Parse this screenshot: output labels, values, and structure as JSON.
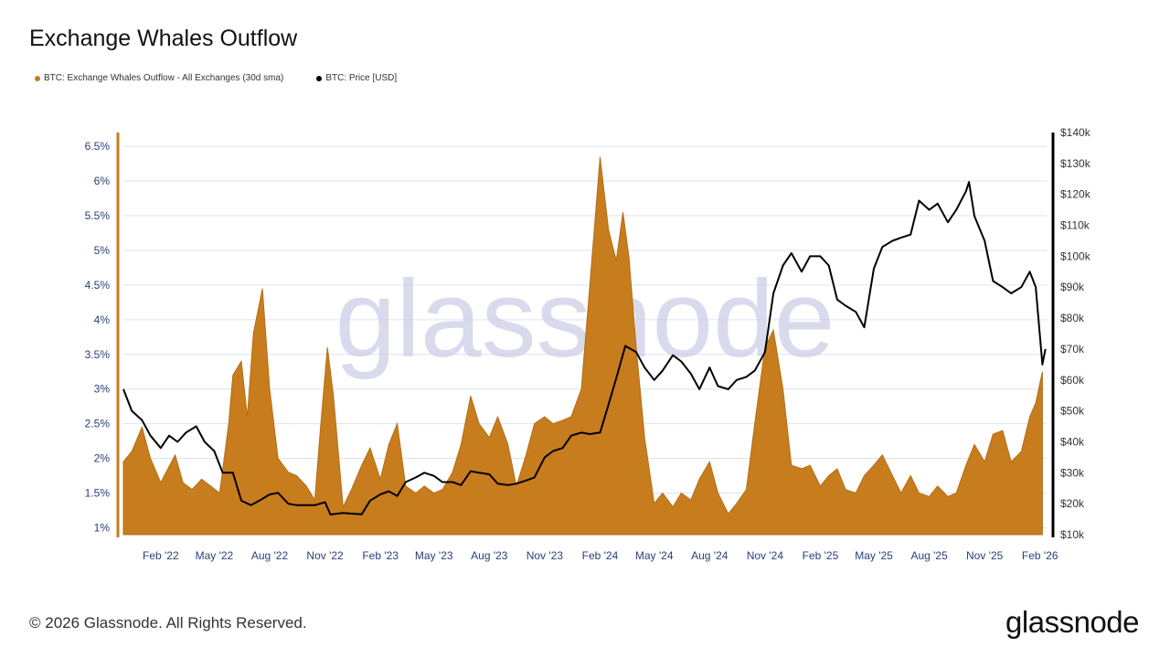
{
  "title": "Exchange Whales Outflow",
  "legend": {
    "series1": "BTC: Exchange Whales Outflow - All Exchanges (30d sma)",
    "series2": "BTC: Price [USD]"
  },
  "footer": {
    "copyright": "© 2026 Glassnode. All Rights Reserved.",
    "logo": "glassnode"
  },
  "watermark": "glassnode",
  "colors": {
    "outflow": "#c77c1e",
    "price": "#000000",
    "grid": "#dde3f0",
    "left_axis_text": "#2a3f7a",
    "right_axis_text": "#333333",
    "watermark": "#c9cde6"
  },
  "chart_data": {
    "type": "area",
    "x_ticks": [
      "Feb '22",
      "May '22",
      "Aug '22",
      "Nov '22",
      "Feb '23",
      "May '23",
      "Aug '23",
      "Nov '23",
      "Feb '24",
      "May '24",
      "Aug '24",
      "Nov '24",
      "Feb '25",
      "May '25",
      "Aug '25",
      "Nov '25",
      "Feb '26"
    ],
    "left_axis": {
      "label": "",
      "ylim": [
        0.9,
        6.7
      ],
      "ticks": [
        "1%",
        "1.5%",
        "2%",
        "2.5%",
        "3%",
        "3.5%",
        "4%",
        "4.5%",
        "5%",
        "5.5%",
        "6%",
        "6.5%"
      ],
      "tick_values": [
        1,
        1.5,
        2,
        2.5,
        3,
        3.5,
        4,
        4.5,
        5,
        5.5,
        6,
        6.5
      ]
    },
    "right_axis": {
      "label": "",
      "ylim": [
        10000,
        140000
      ],
      "ticks": [
        "$10k",
        "$20k",
        "$30k",
        "$40k",
        "$50k",
        "$60k",
        "$70k",
        "$80k",
        "$90k",
        "$100k",
        "$110k",
        "$120k",
        "$130k",
        "$140k"
      ],
      "tick_values": [
        10000,
        20000,
        30000,
        40000,
        50000,
        60000,
        70000,
        80000,
        90000,
        100000,
        110000,
        120000,
        130000,
        140000
      ]
    },
    "grid": true,
    "legend_position": "top-left",
    "series": [
      {
        "name": "BTC: Exchange Whales Outflow - All Exchanges (30d sma)",
        "type": "area",
        "axis": "left",
        "x": [
          "2021-12-01",
          "2021-12-15",
          "2022-01-01",
          "2022-01-15",
          "2022-02-01",
          "2022-02-10",
          "2022-02-25",
          "2022-03-10",
          "2022-03-25",
          "2022-04-10",
          "2022-04-25",
          "2022-05-10",
          "2022-05-25",
          "2022-06-01",
          "2022-06-15",
          "2022-06-25",
          "2022-07-05",
          "2022-07-20",
          "2022-08-01",
          "2022-08-15",
          "2022-09-01",
          "2022-09-15",
          "2022-10-01",
          "2022-10-15",
          "2022-10-25",
          "2022-11-05",
          "2022-11-15",
          "2022-12-01",
          "2022-12-15",
          "2023-01-01",
          "2023-01-15",
          "2023-02-01",
          "2023-02-15",
          "2023-03-01",
          "2023-03-15",
          "2023-04-01",
          "2023-04-15",
          "2023-05-01",
          "2023-05-15",
          "2023-06-01",
          "2023-06-15",
          "2023-07-01",
          "2023-07-15",
          "2023-08-01",
          "2023-08-15",
          "2023-09-01",
          "2023-09-15",
          "2023-10-01",
          "2023-10-15",
          "2023-11-01",
          "2023-11-15",
          "2023-12-01",
          "2023-12-15",
          "2024-01-01",
          "2024-01-15",
          "2024-02-01",
          "2024-02-15",
          "2024-02-28",
          "2024-03-10",
          "2024-03-20",
          "2024-04-01",
          "2024-04-15",
          "2024-05-01",
          "2024-05-15",
          "2024-06-01",
          "2024-06-15",
          "2024-07-01",
          "2024-07-15",
          "2024-08-01",
          "2024-08-15",
          "2024-09-01",
          "2024-09-15",
          "2024-10-01",
          "2024-10-15",
          "2024-11-01",
          "2024-11-15",
          "2024-12-01",
          "2024-12-15",
          "2025-01-01",
          "2025-01-15",
          "2025-02-01",
          "2025-02-15",
          "2025-03-01",
          "2025-03-15",
          "2025-04-01",
          "2025-04-15",
          "2025-05-01",
          "2025-05-15",
          "2025-06-01",
          "2025-06-15",
          "2025-07-01",
          "2025-07-15",
          "2025-08-01",
          "2025-08-15",
          "2025-09-01",
          "2025-09-15",
          "2025-10-01",
          "2025-10-15",
          "2025-11-01",
          "2025-11-15",
          "2025-12-01",
          "2025-12-15",
          "2026-01-01",
          "2026-01-15",
          "2026-01-25",
          "2026-02-05"
        ],
        "y": [
          1.95,
          2.1,
          2.45,
          2.0,
          1.65,
          1.8,
          2.05,
          1.65,
          1.55,
          1.7,
          1.6,
          1.5,
          2.5,
          3.2,
          3.4,
          2.6,
          3.8,
          4.45,
          3.0,
          2.0,
          1.8,
          1.75,
          1.6,
          1.4,
          2.5,
          3.6,
          2.9,
          1.3,
          1.55,
          1.9,
          2.15,
          1.7,
          2.2,
          2.5,
          1.6,
          1.5,
          1.6,
          1.5,
          1.55,
          1.8,
          2.2,
          2.9,
          2.5,
          2.3,
          2.6,
          2.2,
          1.6,
          2.05,
          2.5,
          2.6,
          2.5,
          2.55,
          2.6,
          3.0,
          4.5,
          6.35,
          5.3,
          4.85,
          5.55,
          4.9,
          3.6,
          2.3,
          1.35,
          1.5,
          1.3,
          1.5,
          1.4,
          1.7,
          1.95,
          1.5,
          1.2,
          1.35,
          1.55,
          2.5,
          3.6,
          3.85,
          3.0,
          1.9,
          1.85,
          1.9,
          1.6,
          1.75,
          1.85,
          1.55,
          1.5,
          1.75,
          1.9,
          2.05,
          1.75,
          1.5,
          1.75,
          1.5,
          1.45,
          1.6,
          1.45,
          1.5,
          1.9,
          2.2,
          1.95,
          2.35,
          2.4,
          1.95,
          2.1,
          2.6,
          2.8,
          3.25
        ]
      },
      {
        "name": "BTC: Price [USD]",
        "type": "line",
        "axis": "right",
        "x": [
          "2021-12-01",
          "2021-12-15",
          "2022-01-01",
          "2022-01-15",
          "2022-02-01",
          "2022-02-15",
          "2022-03-01",
          "2022-03-15",
          "2022-04-01",
          "2022-04-15",
          "2022-05-01",
          "2022-05-15",
          "2022-06-01",
          "2022-06-15",
          "2022-07-01",
          "2022-07-15",
          "2022-08-01",
          "2022-08-15",
          "2022-09-01",
          "2022-09-15",
          "2022-10-01",
          "2022-10-15",
          "2022-11-01",
          "2022-11-10",
          "2022-12-01",
          "2022-12-15",
          "2023-01-01",
          "2023-01-15",
          "2023-02-01",
          "2023-02-15",
          "2023-03-01",
          "2023-03-15",
          "2023-04-01",
          "2023-04-15",
          "2023-05-01",
          "2023-05-15",
          "2023-06-01",
          "2023-06-15",
          "2023-07-01",
          "2023-07-15",
          "2023-08-01",
          "2023-08-15",
          "2023-09-01",
          "2023-09-15",
          "2023-10-01",
          "2023-10-15",
          "2023-11-01",
          "2023-11-15",
          "2023-12-01",
          "2023-12-15",
          "2024-01-01",
          "2024-01-15",
          "2024-02-01",
          "2024-02-15",
          "2024-03-01",
          "2024-03-14",
          "2024-04-01",
          "2024-04-15",
          "2024-05-01",
          "2024-05-15",
          "2024-06-01",
          "2024-06-15",
          "2024-07-01",
          "2024-07-15",
          "2024-08-01",
          "2024-08-15",
          "2024-09-01",
          "2024-09-15",
          "2024-10-01",
          "2024-10-15",
          "2024-11-01",
          "2024-11-15",
          "2024-12-01",
          "2024-12-15",
          "2025-01-01",
          "2025-01-15",
          "2025-02-01",
          "2025-02-15",
          "2025-03-01",
          "2025-03-15",
          "2025-04-01",
          "2025-04-15",
          "2025-05-01",
          "2025-05-15",
          "2025-06-01",
          "2025-06-15",
          "2025-07-01",
          "2025-07-15",
          "2025-08-01",
          "2025-08-15",
          "2025-09-01",
          "2025-09-15",
          "2025-10-01",
          "2025-10-06",
          "2025-10-15",
          "2025-11-01",
          "2025-11-15",
          "2025-12-01",
          "2025-12-15",
          "2026-01-01",
          "2026-01-15",
          "2026-01-25",
          "2026-02-05",
          "2026-02-10"
        ],
        "y": [
          57000,
          50000,
          47000,
          42000,
          38000,
          42000,
          40000,
          43000,
          45000,
          40000,
          37000,
          30000,
          30000,
          21000,
          19500,
          21000,
          23000,
          23500,
          20000,
          19500,
          19500,
          19500,
          20500,
          16500,
          17000,
          16800,
          16600,
          21000,
          23000,
          24000,
          22500,
          27000,
          28500,
          30000,
          29000,
          27000,
          27000,
          26000,
          30500,
          30000,
          29500,
          26500,
          26000,
          26500,
          27500,
          28500,
          35000,
          37000,
          38000,
          42000,
          43000,
          42500,
          43000,
          52000,
          62000,
          71000,
          69000,
          64000,
          60000,
          63000,
          68000,
          66000,
          62000,
          57000,
          64000,
          58000,
          57000,
          60000,
          61000,
          63000,
          69000,
          88000,
          97000,
          101000,
          95000,
          100000,
          100000,
          97000,
          86000,
          84000,
          82000,
          77000,
          96000,
          103000,
          105000,
          106000,
          107000,
          118000,
          115000,
          117000,
          111000,
          115000,
          121000,
          124000,
          113000,
          105000,
          92000,
          90000,
          88000,
          90000,
          95000,
          90000,
          65000,
          70000
        ]
      }
    ]
  }
}
